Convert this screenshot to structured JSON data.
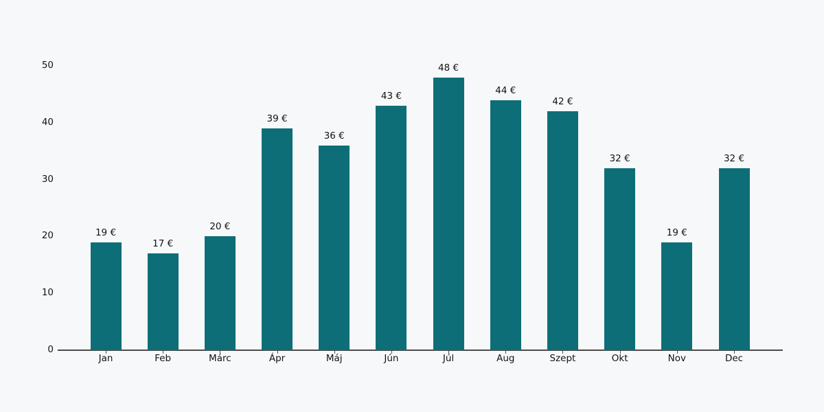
{
  "chart_data": {
    "type": "bar",
    "categories": [
      "Jan",
      "Feb",
      "Márc",
      "Ápr",
      "Máj",
      "Jún",
      "Júl",
      "Aug",
      "Szept",
      "Okt",
      "Nov",
      "Dec"
    ],
    "values": [
      19,
      17,
      20,
      39,
      36,
      43,
      48,
      44,
      42,
      32,
      19,
      32
    ],
    "bar_labels": [
      "19 €",
      "17 €",
      "20 €",
      "39 €",
      "36 €",
      "43 €",
      "48 €",
      "44 €",
      "42 €",
      "32 €",
      "19 €",
      "32 €"
    ],
    "title": "",
    "xlabel": "",
    "ylabel": "",
    "ylim": [
      0,
      50
    ],
    "yticks": [
      0,
      10,
      20,
      30,
      40,
      50
    ],
    "grid": false,
    "legend": "none",
    "bar_color": "#0e6e78",
    "background_color": "#f7f8fa",
    "axis_color": "#4a4a4a",
    "text_color": "#121212"
  }
}
